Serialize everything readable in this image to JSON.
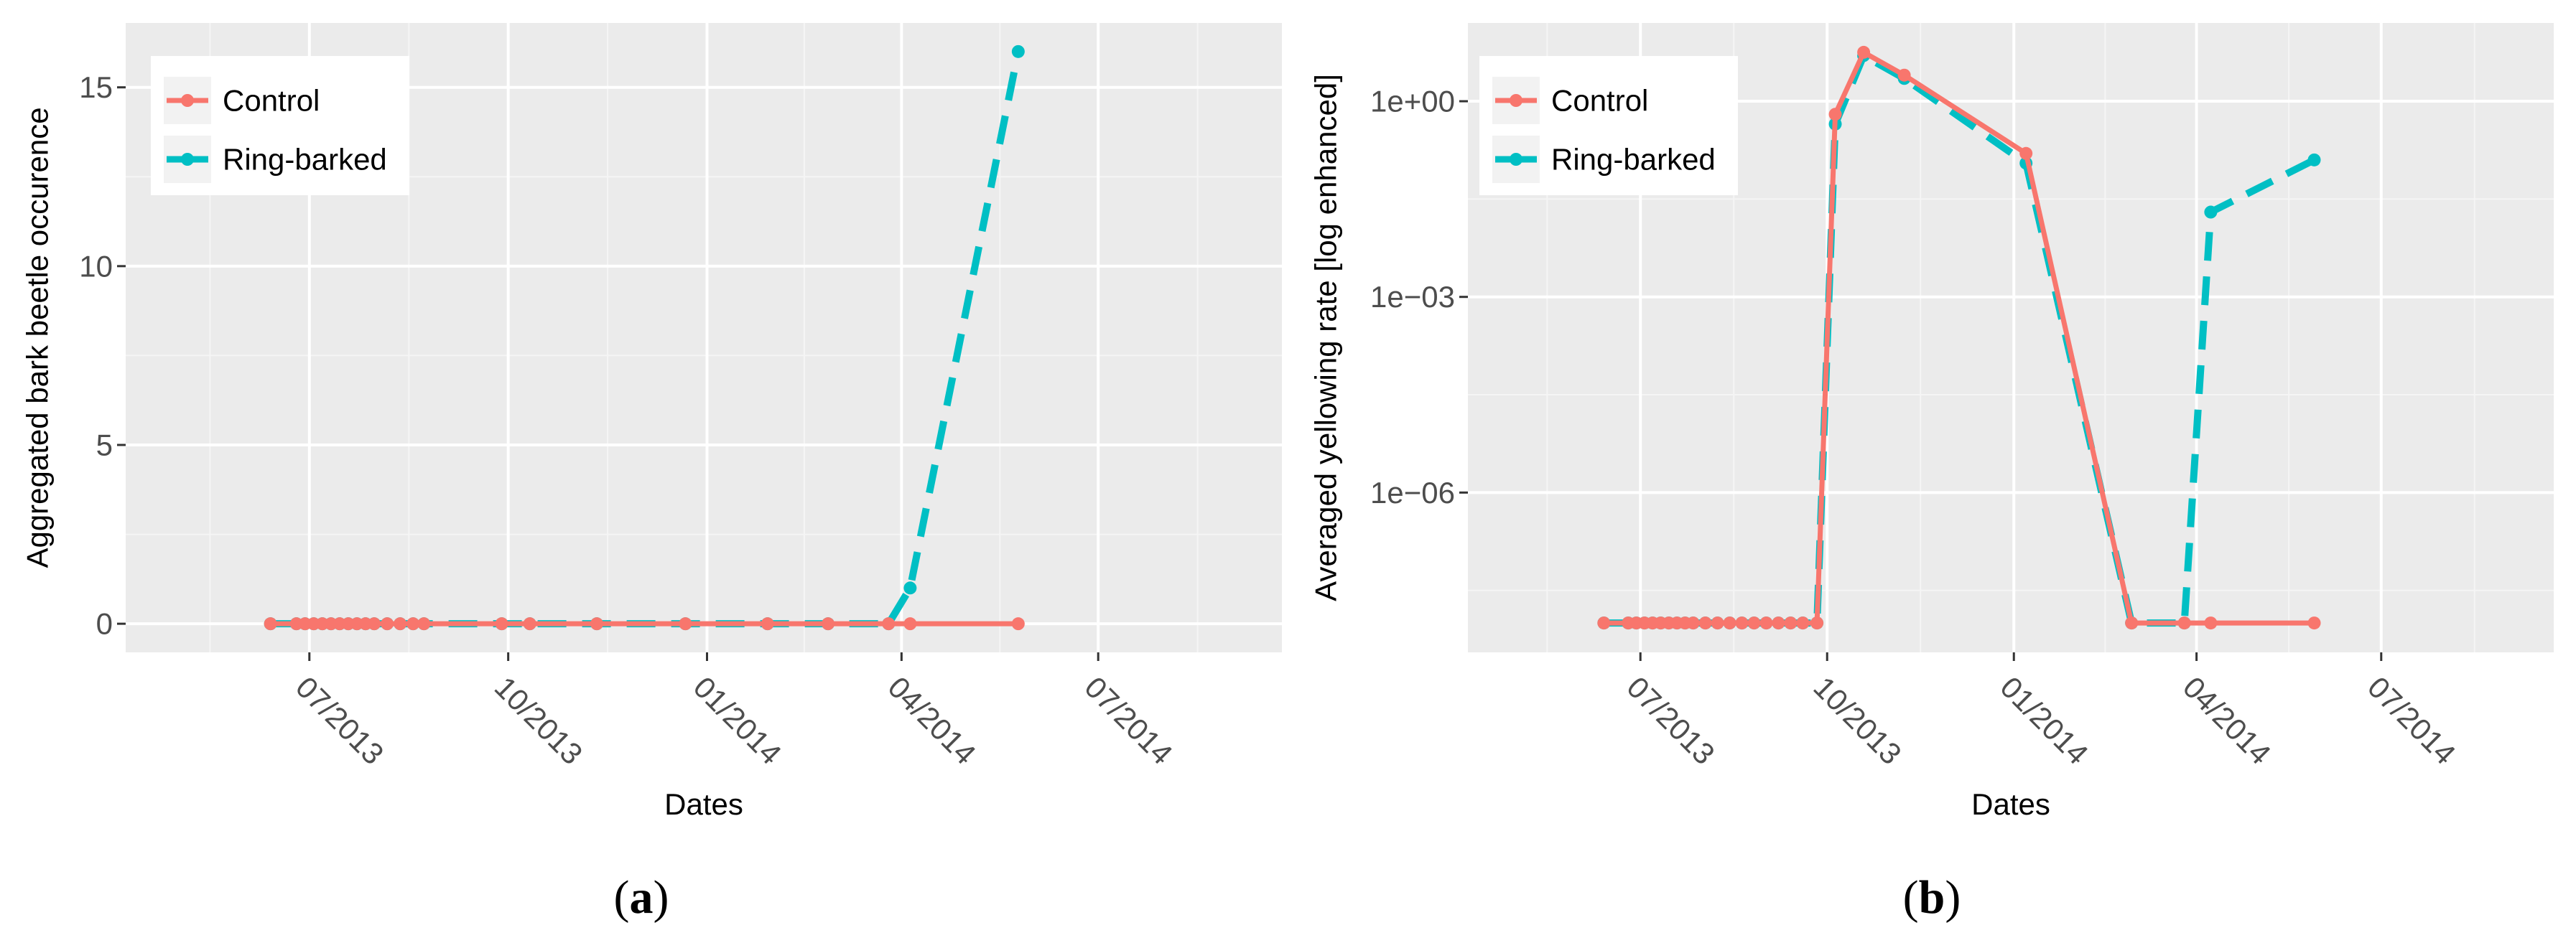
{
  "chart_data": [
    {
      "type": "line",
      "panel_label": "a",
      "title": "",
      "xlabel": "Dates",
      "ylabel": "Aggregated bark beetle occurence",
      "yscale": "linear",
      "xlim": [
        "2013-04-07",
        "2014-09-24"
      ],
      "ylim": [
        -0.8,
        16.8
      ],
      "yticks": [
        0,
        5,
        10,
        15
      ],
      "ytick_labels": [
        "0",
        "5",
        "10",
        "15"
      ],
      "xticks": [
        "2013-07-01",
        "2013-10-01",
        "2014-01-01",
        "2014-04-01",
        "2014-07-01"
      ],
      "xtick_labels": [
        "07/2013",
        "10/2013",
        "01/2014",
        "04/2014",
        "07/2014"
      ],
      "grid": true,
      "legend_position": "top-left",
      "series": [
        {
          "name": "Control",
          "color": "#F8766D",
          "linestyle": "solid",
          "points": [
            [
              "2013-06-13",
              0
            ],
            [
              "2013-06-25",
              0
            ],
            [
              "2013-06-29",
              0
            ],
            [
              "2013-07-03",
              0
            ],
            [
              "2013-07-07",
              0
            ],
            [
              "2013-07-11",
              0
            ],
            [
              "2013-07-15",
              0
            ],
            [
              "2013-07-19",
              0
            ],
            [
              "2013-07-23",
              0
            ],
            [
              "2013-07-27",
              0
            ],
            [
              "2013-07-31",
              0
            ],
            [
              "2013-08-06",
              0
            ],
            [
              "2013-08-12",
              0
            ],
            [
              "2013-08-18",
              0
            ],
            [
              "2013-08-23",
              0
            ],
            [
              "2013-09-28",
              0
            ],
            [
              "2013-10-11",
              0
            ],
            [
              "2013-11-11",
              0
            ],
            [
              "2013-12-22",
              0
            ],
            [
              "2014-01-29",
              0
            ],
            [
              "2014-02-26",
              0
            ],
            [
              "2014-03-26",
              0
            ],
            [
              "2014-04-05",
              0
            ],
            [
              "2014-05-25",
              0
            ]
          ]
        },
        {
          "name": "Ring-barked",
          "color": "#00BFC4",
          "linestyle": "dashed",
          "points": [
            [
              "2013-06-13",
              0
            ],
            [
              "2013-06-25",
              0
            ],
            [
              "2013-06-29",
              0
            ],
            [
              "2013-07-03",
              0
            ],
            [
              "2013-07-07",
              0
            ],
            [
              "2013-07-11",
              0
            ],
            [
              "2013-07-15",
              0
            ],
            [
              "2013-07-19",
              0
            ],
            [
              "2013-07-23",
              0
            ],
            [
              "2013-07-27",
              0
            ],
            [
              "2013-07-31",
              0
            ],
            [
              "2013-08-06",
              0
            ],
            [
              "2013-08-12",
              0
            ],
            [
              "2013-08-18",
              0
            ],
            [
              "2013-08-23",
              0
            ],
            [
              "2013-09-28",
              0
            ],
            [
              "2013-10-11",
              0
            ],
            [
              "2013-11-11",
              0
            ],
            [
              "2013-12-22",
              0
            ],
            [
              "2014-01-29",
              0
            ],
            [
              "2014-02-26",
              0
            ],
            [
              "2014-03-26",
              0
            ],
            [
              "2014-04-05",
              1
            ],
            [
              "2014-05-25",
              16
            ]
          ]
        }
      ]
    },
    {
      "type": "line",
      "panel_label": "b",
      "title": "",
      "xlabel": "Dates",
      "ylabel": "Averaged yellowing rate [log enhanced]",
      "yscale": "log10",
      "xlim": [
        "2013-04-07",
        "2014-09-24"
      ],
      "ylim_log10": [
        -8.45,
        1.2
      ],
      "yticks_log10": [
        0,
        -3,
        -6
      ],
      "ytick_labels": [
        "1e+00",
        "1e−03",
        "1e−06"
      ],
      "xticks": [
        "2013-07-01",
        "2013-10-01",
        "2014-01-01",
        "2014-04-01",
        "2014-07-01"
      ],
      "xtick_labels": [
        "07/2013",
        "10/2013",
        "01/2014",
        "04/2014",
        "07/2014"
      ],
      "grid": true,
      "legend_position": "top-left",
      "series": [
        {
          "name": "Control",
          "color": "#F8766D",
          "linestyle": "solid",
          "points_log10": [
            [
              "2013-06-13",
              -8
            ],
            [
              "2013-06-25",
              -8
            ],
            [
              "2013-06-29",
              -8
            ],
            [
              "2013-07-03",
              -8
            ],
            [
              "2013-07-07",
              -8
            ],
            [
              "2013-07-11",
              -8
            ],
            [
              "2013-07-15",
              -8
            ],
            [
              "2013-07-19",
              -8
            ],
            [
              "2013-07-23",
              -8
            ],
            [
              "2013-07-27",
              -8
            ],
            [
              "2013-08-02",
              -8
            ],
            [
              "2013-08-08",
              -8
            ],
            [
              "2013-08-14",
              -8
            ],
            [
              "2013-08-20",
              -8
            ],
            [
              "2013-08-26",
              -8
            ],
            [
              "2013-09-01",
              -8
            ],
            [
              "2013-09-07",
              -8
            ],
            [
              "2013-09-13",
              -8
            ],
            [
              "2013-09-19",
              -8
            ],
            [
              "2013-09-26",
              -8
            ],
            [
              "2013-10-05",
              -0.2
            ],
            [
              "2013-10-19",
              0.75
            ],
            [
              "2013-11-08",
              0.4
            ],
            [
              "2014-01-07",
              -0.8
            ],
            [
              "2014-02-28",
              -8
            ],
            [
              "2014-03-26",
              -8
            ],
            [
              "2014-04-08",
              -8
            ],
            [
              "2014-05-29",
              -8
            ]
          ]
        },
        {
          "name": "Ring-barked",
          "color": "#00BFC4",
          "linestyle": "dashed",
          "points_log10": [
            [
              "2013-06-13",
              -8
            ],
            [
              "2013-06-25",
              -8
            ],
            [
              "2013-06-29",
              -8
            ],
            [
              "2013-07-03",
              -8
            ],
            [
              "2013-07-07",
              -8
            ],
            [
              "2013-07-11",
              -8
            ],
            [
              "2013-07-15",
              -8
            ],
            [
              "2013-07-19",
              -8
            ],
            [
              "2013-07-23",
              -8
            ],
            [
              "2013-07-27",
              -8
            ],
            [
              "2013-08-02",
              -8
            ],
            [
              "2013-08-08",
              -8
            ],
            [
              "2013-08-14",
              -8
            ],
            [
              "2013-08-20",
              -8
            ],
            [
              "2013-08-26",
              -8
            ],
            [
              "2013-09-01",
              -8
            ],
            [
              "2013-09-07",
              -8
            ],
            [
              "2013-09-13",
              -8
            ],
            [
              "2013-09-19",
              -8
            ],
            [
              "2013-09-26",
              -8
            ],
            [
              "2013-10-05",
              -0.35
            ],
            [
              "2013-10-19",
              0.7
            ],
            [
              "2013-11-08",
              0.35
            ],
            [
              "2014-01-07",
              -0.95
            ],
            [
              "2014-02-28",
              -8
            ],
            [
              "2014-03-26",
              -8
            ],
            [
              "2014-04-08",
              -1.7
            ],
            [
              "2014-05-29",
              -0.9
            ]
          ]
        }
      ]
    }
  ],
  "captions": [
    {
      "open": "(",
      "letter": "a",
      "close": ")"
    },
    {
      "open": "(",
      "letter": "b",
      "close": ")"
    }
  ]
}
